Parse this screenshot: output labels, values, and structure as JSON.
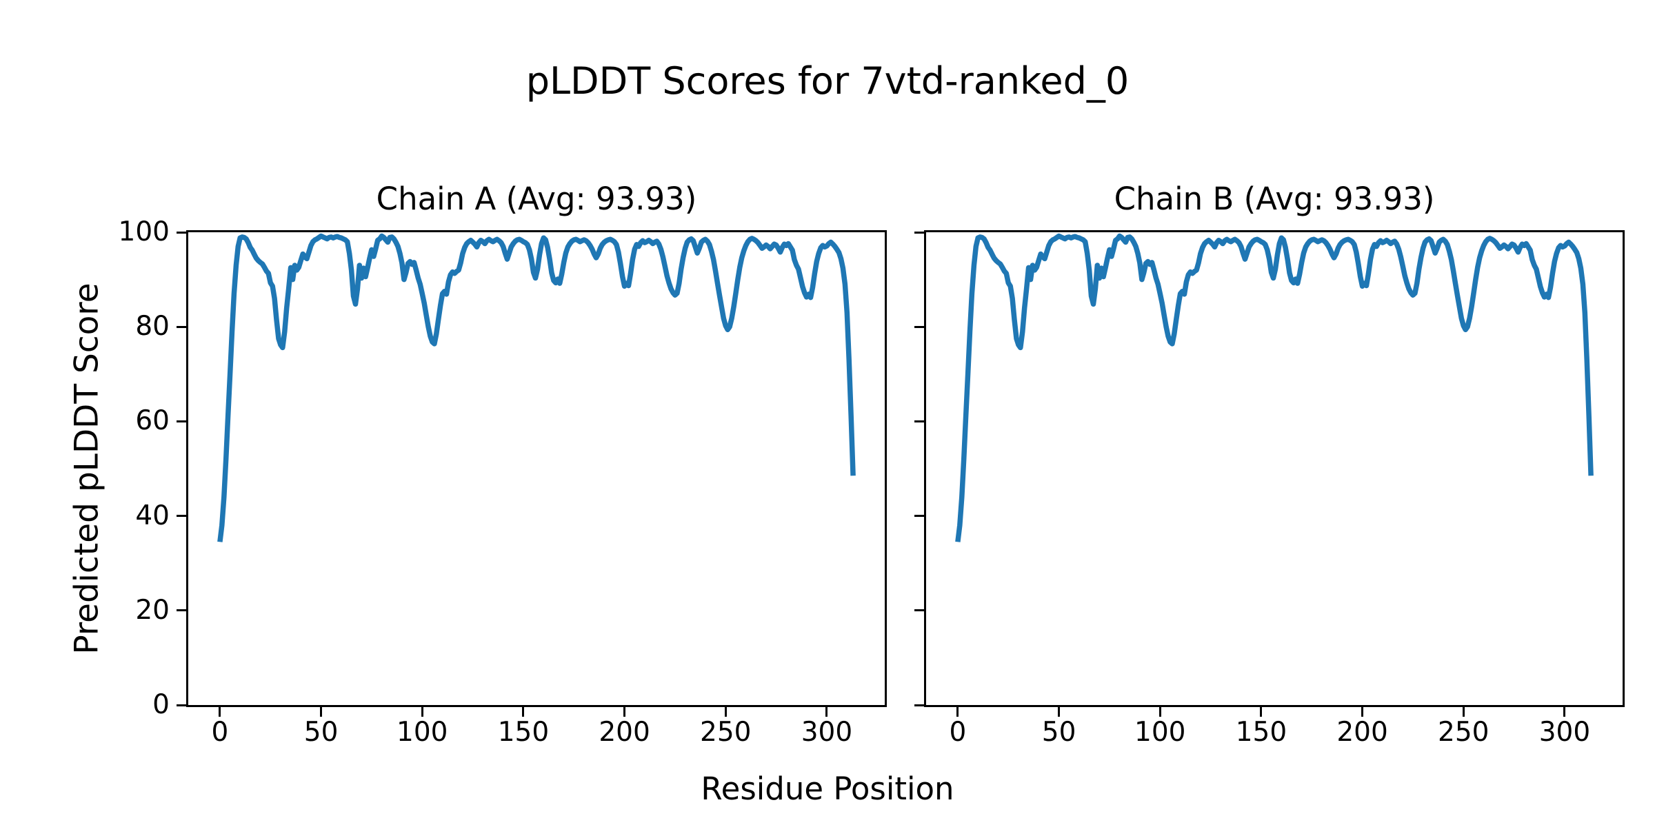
{
  "figure_title": "pLDDT Scores for 7vtd-ranked_0",
  "colors": {
    "line": "#1f77b4",
    "axis": "#000000",
    "text": "#000000",
    "background": "#ffffff"
  },
  "chart_data": {
    "type": "line",
    "title": "pLDDT Scores for 7vtd-ranked_0",
    "xlabel": "Residue Position",
    "ylabel": "Predicted pLDDT Score",
    "grid": false,
    "legend": "none",
    "xlim": [
      -15.65,
      328.65
    ],
    "ylim": [
      0,
      100
    ],
    "xticks": [
      0,
      50,
      100,
      150,
      200,
      250,
      300
    ],
    "yticks": [
      0,
      20,
      40,
      60,
      80,
      100
    ],
    "x_start": 0,
    "x_step": 1,
    "subplots": [
      {
        "title": "Chain A (Avg: 93.93)",
        "series_name": "Chain A",
        "avg": 93.93,
        "show_ytick_labels": true
      },
      {
        "title": "Chain B (Avg: 93.93)",
        "series_name": "Chain B",
        "avg": 93.93,
        "show_ytick_labels": false
      }
    ],
    "note": "Both chains plot identical per-residue pLDDT values",
    "values": [
      34.5,
      38,
      44,
      52,
      61,
      70,
      79,
      87,
      93,
      97,
      98.8,
      99,
      98.9,
      98.6,
      97.8,
      96.8,
      96.2,
      95.3,
      94.5,
      94,
      93.6,
      93.3,
      92.6,
      91.8,
      91.3,
      89.3,
      88.6,
      86,
      81.5,
      77.5,
      76.2,
      75.6,
      79,
      84,
      88,
      92.5,
      90,
      93,
      92,
      92.6,
      94,
      95.4,
      94.8,
      94.4,
      95.8,
      97.2,
      98,
      98.4,
      98.6,
      98.9,
      99.2,
      99,
      98.8,
      98.6,
      98.9,
      99,
      98.8,
      99,
      99.1,
      98.9,
      98.8,
      98.6,
      98.4,
      98,
      95.5,
      92,
      86.5,
      84.8,
      88,
      93,
      90.3,
      92.4,
      90.6,
      92.5,
      94.5,
      96.3,
      94.9,
      96.5,
      98.3,
      98.6,
      99.2,
      98.9,
      98.4,
      97.9,
      98.9,
      99,
      98.6,
      97.9,
      97,
      95.5,
      93.5,
      90,
      91.5,
      93.4,
      93.8,
      93.2,
      93.6,
      92,
      90.3,
      89,
      87,
      85,
      82.5,
      80,
      78,
      76.8,
      76.4,
      78.5,
      81.5,
      84.5,
      87,
      87.5,
      86.9,
      89.5,
      91,
      91.6,
      91.3,
      91.7,
      92,
      93.5,
      95.5,
      96.8,
      97.6,
      98,
      98.3,
      97.9,
      97.5,
      96.9,
      97.8,
      98.3,
      98,
      97.6,
      98.2,
      98.5,
      98.2,
      98,
      98.3,
      98.5,
      98.2,
      97.8,
      97,
      95.6,
      94.3,
      95.6,
      96.9,
      97.6,
      98.1,
      98.4,
      98.5,
      98.3,
      98,
      97.8,
      97.4,
      96.3,
      94.3,
      91.5,
      90.3,
      92.2,
      95.2,
      97.6,
      98.8,
      98.4,
      96.8,
      94.3,
      91.4,
      89.8,
      89.3,
      90.1,
      89.2,
      91.2,
      93.6,
      95.6,
      96.9,
      97.6,
      98.1,
      98.4,
      98.5,
      98.3,
      98,
      98.2,
      98.4,
      98.2,
      97.8,
      97.2,
      96.4,
      95.4,
      94.6,
      95.4,
      96.6,
      97.4,
      97.9,
      98.2,
      98.4,
      98.5,
      98.3,
      98,
      97.4,
      95.8,
      93.4,
      90.6,
      88.6,
      89.2,
      88.7,
      91.2,
      94.2,
      96.4,
      97.4,
      97,
      97.8,
      98.2,
      97.8,
      98,
      98.3,
      98,
      97.6,
      97.9,
      98.1,
      97.5,
      96.4,
      94.8,
      92.8,
      90.8,
      89.3,
      88,
      87.2,
      86.7,
      87.1,
      89.2,
      92.2,
      94.7,
      96.6,
      97.9,
      98.4,
      98.6,
      98.2,
      96.9,
      95.6,
      96.6,
      97.9,
      98.3,
      98.5,
      98.1,
      97.4,
      96,
      94.2,
      91.8,
      89.2,
      86.6,
      84.2,
      81.8,
      80.2,
      79.4,
      80,
      81.8,
      84.2,
      87,
      90,
      92.6,
      94.6,
      96.1,
      97.2,
      98,
      98.5,
      98.7,
      98.5,
      98.2,
      97.8,
      97.2,
      96.6,
      96.9,
      97.3,
      97,
      96.5,
      97,
      97.5,
      97.3,
      96.6,
      95.8,
      96.8,
      97.5,
      97.2,
      97.6,
      96.9,
      96.2,
      94.2,
      93,
      92.2,
      90.4,
      88.5,
      87.2,
      86.3,
      86.9,
      86.2,
      88.3,
      91.3,
      93.8,
      95.5,
      96.7,
      97.2,
      96.9,
      97.1,
      97.6,
      97.9,
      97.5,
      97,
      96.4,
      95.7,
      94.4,
      92.4,
      89,
      83,
      73,
      61,
      48.5
    ]
  }
}
